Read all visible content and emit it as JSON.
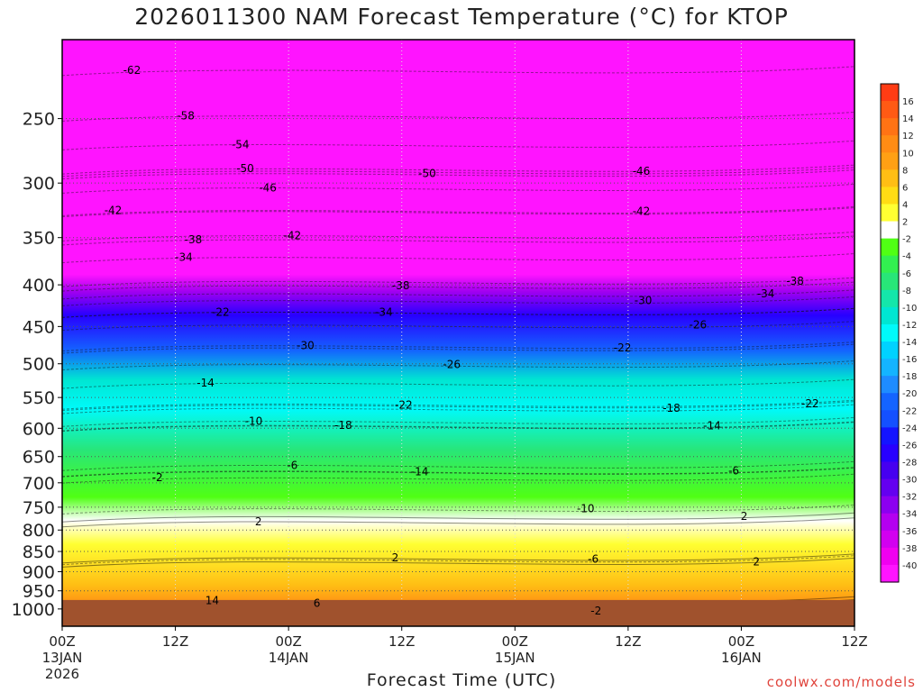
{
  "title": "2026011300 NAM Forecast Temperature (°C) for KTOP",
  "xlabel": "Forecast Time (UTC)",
  "credit": "coolwx.com/models",
  "chart_data": {
    "type": "heatmap",
    "title": "2026011300 NAM Forecast Temperature (°C) for KTOP",
    "xlabel": "Forecast Time (UTC)",
    "ylabel": "",
    "y_scale": "log",
    "y_direction": "reversed",
    "ylim": [
      1050,
      200
    ],
    "y_ticks": [
      250,
      300,
      350,
      400,
      450,
      500,
      550,
      600,
      650,
      700,
      750,
      800,
      850,
      900,
      950,
      1000
    ],
    "x_ticks": [
      {
        "hour": 0,
        "lines": [
          "00Z",
          "13JAN",
          "2026"
        ]
      },
      {
        "hour": 12,
        "lines": [
          "12Z"
        ]
      },
      {
        "hour": 24,
        "lines": [
          "00Z",
          "14JAN"
        ]
      },
      {
        "hour": 36,
        "lines": [
          "12Z"
        ]
      },
      {
        "hour": 48,
        "lines": [
          "00Z",
          "15JAN"
        ]
      },
      {
        "hour": 60,
        "lines": [
          "12Z"
        ]
      },
      {
        "hour": 72,
        "lines": [
          "00Z",
          "16JAN"
        ]
      },
      {
        "hour": 84,
        "lines": [
          "12Z"
        ]
      }
    ],
    "xlim": [
      0,
      84
    ],
    "grid": true,
    "colorbar": {
      "labels": [
        16,
        14,
        12,
        10,
        8,
        6,
        4,
        2,
        -2,
        -4,
        -6,
        -8,
        -10,
        -12,
        -14,
        -16,
        -18,
        -20,
        -22,
        -24,
        -26,
        -28,
        -30,
        -32,
        -34,
        -36,
        -38,
        -40
      ],
      "colors": [
        "#ff3c14",
        "#ff5a14",
        "#ff7314",
        "#ff8c14",
        "#ffa014",
        "#ffbe14",
        "#ffdc14",
        "#ffff32",
        "#ffffff",
        "#50ff14",
        "#32f050",
        "#28e678",
        "#14e6aa",
        "#00e6d2",
        "#00fafa",
        "#00d2ff",
        "#14b4ff",
        "#1e8cff",
        "#1464ff",
        "#1450ff",
        "#1414ff",
        "#2800ff",
        "#4600f0",
        "#6400f0",
        "#8c00f0",
        "#b400f0",
        "#d200f0",
        "#f000f0",
        "#ff14ff"
      ]
    },
    "series": [
      {
        "label": "-62",
        "hour": 7.4,
        "pres": 218
      },
      {
        "label": "-58",
        "hour": 13.1,
        "pres": 248
      },
      {
        "label": "-54",
        "hour": 18.9,
        "pres": 269
      },
      {
        "label": "-50",
        "hour": 19.4,
        "pres": 288
      },
      {
        "label": "-50",
        "hour": 38.7,
        "pres": 292
      },
      {
        "label": "-46",
        "hour": 21.8,
        "pres": 304
      },
      {
        "label": "-46",
        "hour": 61.4,
        "pres": 290
      },
      {
        "label": "-42",
        "hour": 5.4,
        "pres": 324
      },
      {
        "label": "-42",
        "hour": 24.4,
        "pres": 348
      },
      {
        "label": "-42",
        "hour": 61.4,
        "pres": 325
      },
      {
        "label": "-38",
        "hour": 13.9,
        "pres": 352
      },
      {
        "label": "-38",
        "hour": 35.9,
        "pres": 401
      },
      {
        "label": "-38",
        "hour": 77.7,
        "pres": 396
      },
      {
        "label": "-34",
        "hour": 12.9,
        "pres": 370
      },
      {
        "label": "-34",
        "hour": 34.1,
        "pres": 432
      },
      {
        "label": "-34",
        "hour": 74.6,
        "pres": 410
      },
      {
        "label": "-30",
        "hour": 25.8,
        "pres": 475
      },
      {
        "label": "-30",
        "hour": 61.6,
        "pres": 418
      },
      {
        "label": "-26",
        "hour": 41.3,
        "pres": 501
      },
      {
        "label": "-26",
        "hour": 67.4,
        "pres": 448
      },
      {
        "label": "-22",
        "hour": 16.8,
        "pres": 432
      },
      {
        "label": "-22",
        "hour": 36.2,
        "pres": 562
      },
      {
        "label": "-22",
        "hour": 59.4,
        "pres": 478
      },
      {
        "label": "-22",
        "hour": 79.3,
        "pres": 560
      },
      {
        "label": "-18",
        "hour": 29.8,
        "pres": 595
      },
      {
        "label": "-18",
        "hour": 64.6,
        "pres": 567
      },
      {
        "label": "-14",
        "hour": 15.2,
        "pres": 528
      },
      {
        "label": "-14",
        "hour": 37.9,
        "pres": 678
      },
      {
        "label": "-14",
        "hour": 68.9,
        "pres": 596
      },
      {
        "label": "-10",
        "hour": 20.3,
        "pres": 588
      },
      {
        "label": "-10",
        "hour": 55.5,
        "pres": 753
      },
      {
        "label": "-6",
        "hour": 24.4,
        "pres": 666
      },
      {
        "label": "-6",
        "hour": 56.3,
        "pres": 869
      },
      {
        "label": "-6",
        "hour": 71.2,
        "pres": 677
      },
      {
        "label": "-2",
        "hour": 10.1,
        "pres": 690
      },
      {
        "label": "-2",
        "hour": 56.6,
        "pres": 1005
      },
      {
        "label": "2",
        "hour": 20.8,
        "pres": 781
      },
      {
        "label": "2",
        "hour": 35.3,
        "pres": 865
      },
      {
        "label": "2",
        "hour": 72.3,
        "pres": 770
      },
      {
        "label": "2",
        "hour": 73.6,
        "pres": 875
      },
      {
        "label": "6",
        "hour": 27.0,
        "pres": 984
      },
      {
        "label": "14",
        "hour": 15.9,
        "pres": 976
      }
    ]
  }
}
